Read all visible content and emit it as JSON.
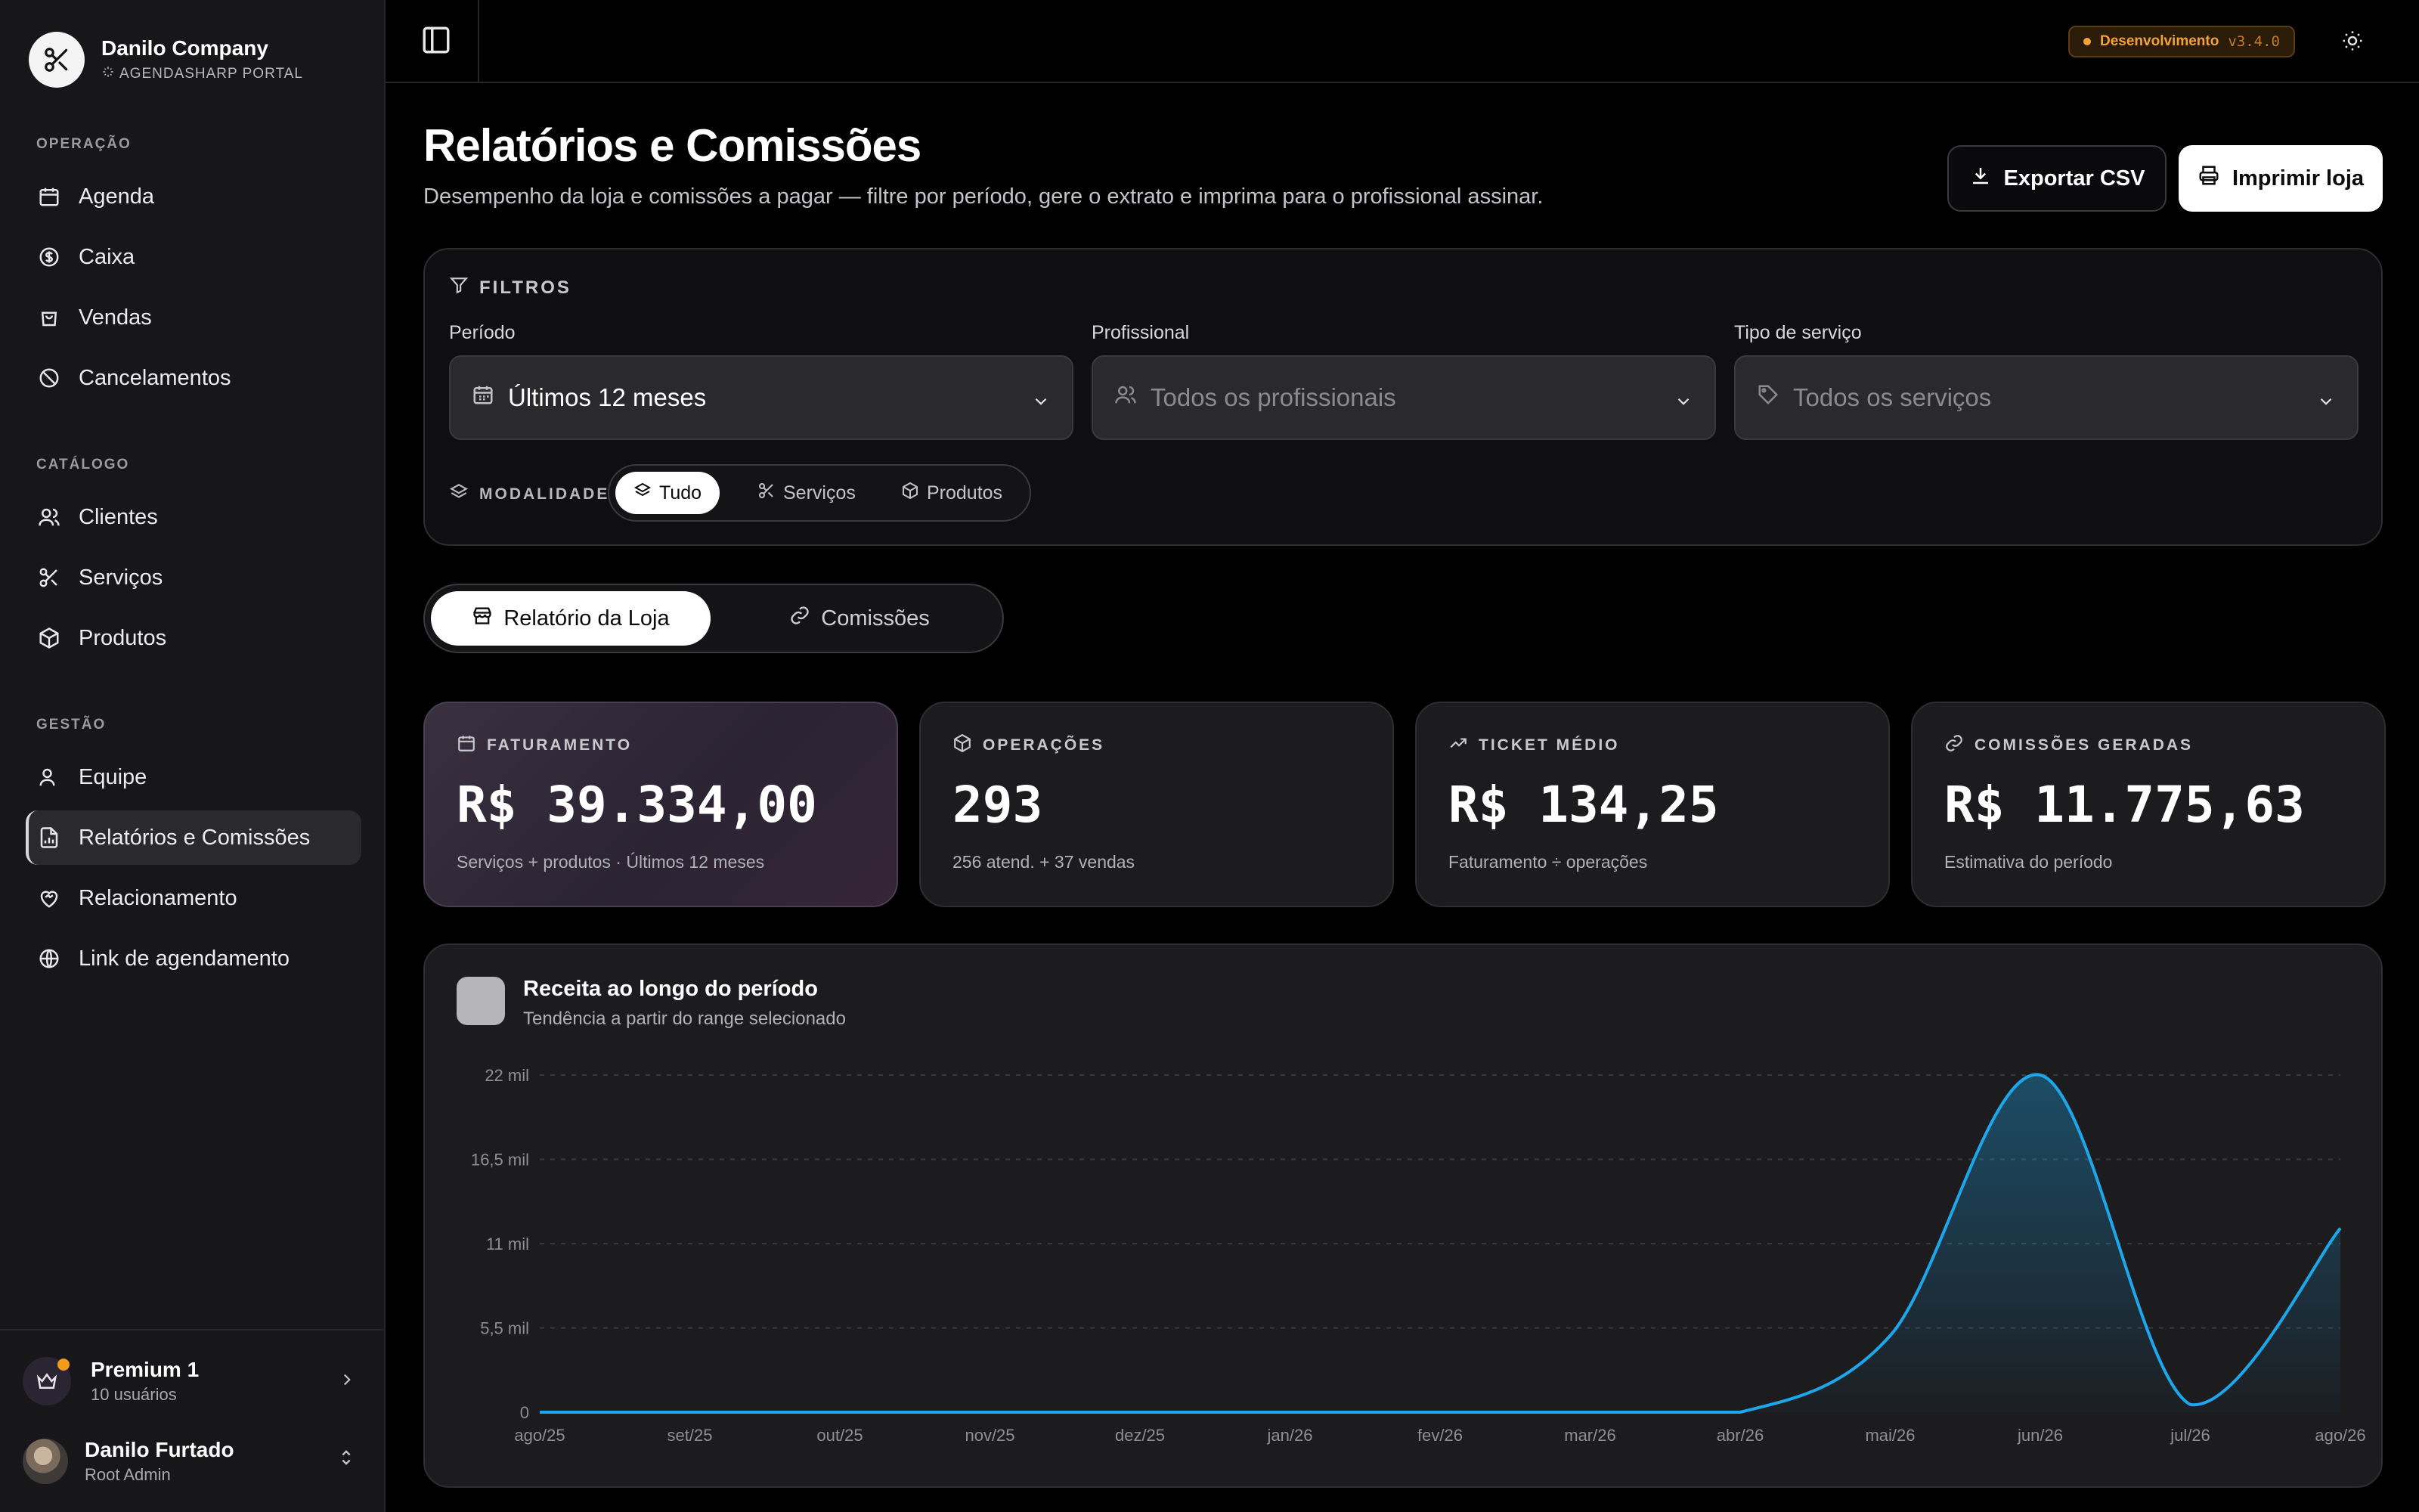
{
  "brand": {
    "name": "Danilo Company",
    "subtitle": "AGENDASHARP PORTAL"
  },
  "sidebar": {
    "sections": [
      {
        "title": "OPERAÇÃO",
        "items": [
          {
            "label": "Agenda",
            "icon": "calendar-icon"
          },
          {
            "label": "Caixa",
            "icon": "dollar-circle-icon"
          },
          {
            "label": "Vendas",
            "icon": "shopping-bag-icon"
          },
          {
            "label": "Cancelamentos",
            "icon": "ban-icon"
          }
        ]
      },
      {
        "title": "CATÁLOGO",
        "items": [
          {
            "label": "Clientes",
            "icon": "users-icon"
          },
          {
            "label": "Serviços",
            "icon": "scissors-icon"
          },
          {
            "label": "Produtos",
            "icon": "package-icon"
          }
        ]
      },
      {
        "title": "GESTÃO",
        "items": [
          {
            "label": "Equipe",
            "icon": "user-icon"
          },
          {
            "label": "Relatórios e Comissões",
            "icon": "report-icon",
            "active": true
          },
          {
            "label": "Relacionamento",
            "icon": "heart-handshake-icon"
          },
          {
            "label": "Link de agendamento",
            "icon": "globe-icon"
          }
        ]
      }
    ],
    "plan": {
      "title": "Premium 1",
      "subtitle": "10 usuários"
    },
    "user": {
      "name": "Danilo Furtado",
      "role": "Root Admin"
    }
  },
  "topbar": {
    "env_label": "Desenvolvimento",
    "env_version": "v3.4.0"
  },
  "header": {
    "title": "Relatórios e Comissões",
    "subtitle": "Desempenho da loja e comissões a pagar — filtre por período, gere o extrato e imprima para o profissional assinar.",
    "export_label": "Exportar CSV",
    "print_label": "Imprimir loja"
  },
  "filters": {
    "title": "FILTROS",
    "period": {
      "label": "Período",
      "value": "Últimos 12 meses"
    },
    "professional": {
      "label": "Profissional",
      "placeholder": "Todos os profissionais"
    },
    "service_type": {
      "label": "Tipo de serviço",
      "placeholder": "Todos os serviços"
    },
    "modality": {
      "label": "MODALIDADE",
      "options": [
        "Tudo",
        "Serviços",
        "Produtos"
      ],
      "selected": "Tudo"
    }
  },
  "tabs": [
    {
      "label": "Relatório da Loja",
      "active": true
    },
    {
      "label": "Comissões",
      "active": false
    }
  ],
  "kpis": [
    {
      "label": "FATURAMENTO",
      "value": "R$ 39.334,00",
      "sub": "Serviços + produtos · Últimos 12 meses"
    },
    {
      "label": "OPERAÇÕES",
      "value": "293",
      "sub": "256 atend. + 37 vendas"
    },
    {
      "label": "TICKET MÉDIO",
      "value": "R$ 134,25",
      "sub": "Faturamento ÷ operações"
    },
    {
      "label": "COMISSÕES GERADAS",
      "value": "R$ 11.775,63",
      "sub": "Estimativa do período"
    }
  ],
  "chart": {
    "title": "Receita ao longo do período",
    "subtitle": "Tendência a partir do range selecionado"
  },
  "chart_data": {
    "type": "area",
    "categories": [
      "ago/25",
      "set/25",
      "out/25",
      "nov/25",
      "dez/25",
      "jan/26",
      "fev/26",
      "mar/26",
      "abr/26",
      "mai/26",
      "jun/26",
      "jul/26",
      "ago/26"
    ],
    "series": [
      {
        "values": [
          0,
          0,
          0,
          0,
          0,
          0,
          0,
          0,
          0,
          5000,
          22000,
          500,
          12000
        ]
      }
    ],
    "yticks": [
      "0",
      "5,5 mil",
      "11 mil",
      "16,5 mil",
      "22 mil"
    ],
    "ylim": [
      0,
      22000
    ],
    "grid": true,
    "color": "#1ea6ea"
  }
}
